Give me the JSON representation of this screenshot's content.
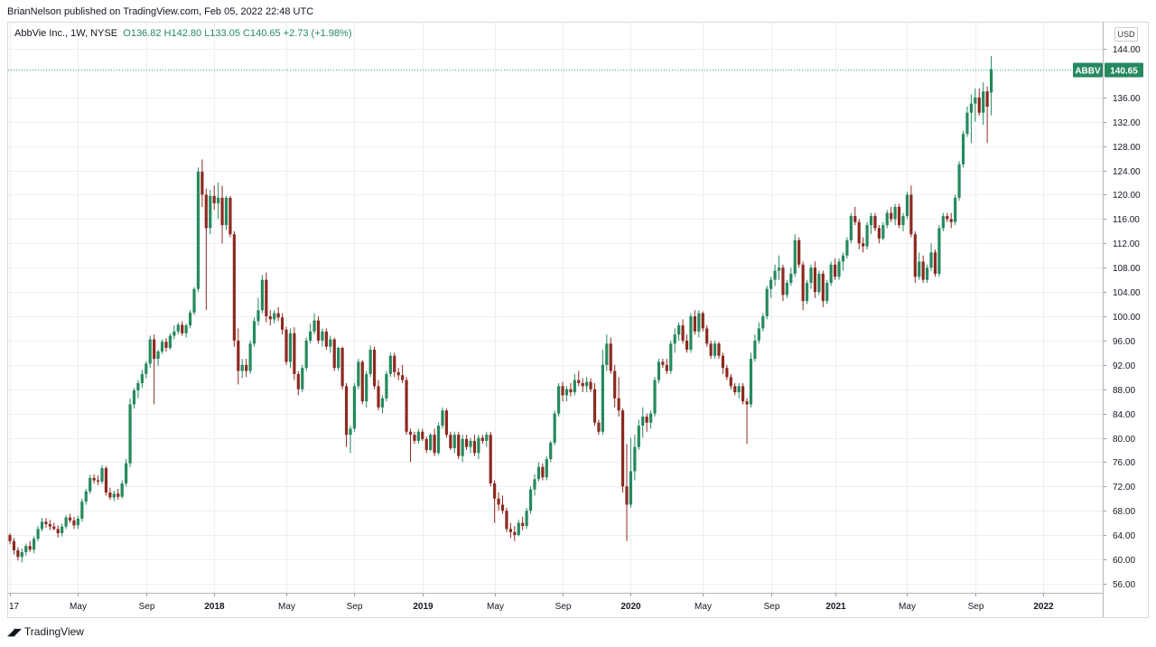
{
  "header": {
    "published_by": "BrianNelson published on TradingView.com, Feb 05, 2022 22:48 UTC"
  },
  "legend": {
    "symbol": "AbbVie Inc., 1W, NYSE",
    "open": "O136.82",
    "high": "H142.80",
    "low": "L133.05",
    "close": "C140.65",
    "change": "+2.73 (+1.98%)"
  },
  "currency": "USD",
  "price_tag": {
    "ticker": "ABBV",
    "value": "140.65"
  },
  "footer": {
    "brand": "TradingView"
  },
  "colors": {
    "up": "#26895f",
    "down": "#8c2a20",
    "grid": "#eceff2",
    "last_line": "#26a69a"
  },
  "chart_data": {
    "type": "candlestick",
    "title": "",
    "xlabel": "",
    "ylabel": "",
    "ylim": [
      54.5,
      145.5
    ],
    "grid": true,
    "y_ticks": [
      56,
      60,
      64,
      68,
      72,
      76,
      80,
      84,
      88,
      92,
      96,
      100,
      104,
      108,
      112,
      116,
      120,
      124,
      128,
      132,
      136,
      144
    ],
    "y_tick_labels": [
      "56.00",
      "60.00",
      "64.00",
      "68.00",
      "72.00",
      "76.00",
      "80.00",
      "84.00",
      "88.00",
      "92.00",
      "96.00",
      "100.00",
      "104.00",
      "108.00",
      "112.00",
      "116.00",
      "120.00",
      "124.00",
      "128.00",
      "132.00",
      "136.00",
      "144.00"
    ],
    "x_tick_labels": [
      "17",
      "May",
      "Sep",
      "2018",
      "May",
      "Sep",
      "2019",
      "May",
      "Sep",
      "2020",
      "May",
      "Sep",
      "2021",
      "May",
      "Sep",
      "2022"
    ],
    "x_tick_index": [
      0,
      17,
      34,
      51,
      69,
      86,
      103,
      121,
      138,
      155,
      173,
      190,
      206,
      224,
      241,
      258
    ],
    "last_price": 140.65,
    "candles": [
      [
        64.0,
        64.3,
        62.5,
        63.0
      ],
      [
        63.0,
        63.5,
        60.8,
        61.5
      ],
      [
        61.5,
        62.0,
        59.8,
        60.4
      ],
      [
        60.4,
        61.8,
        59.5,
        61.2
      ],
      [
        61.2,
        62.6,
        60.6,
        62.2
      ],
      [
        62.2,
        63.0,
        61.2,
        61.6
      ],
      [
        61.6,
        63.8,
        61.0,
        63.4
      ],
      [
        63.4,
        65.5,
        63.0,
        65.0
      ],
      [
        65.0,
        66.8,
        64.6,
        66.2
      ],
      [
        66.2,
        66.8,
        65.2,
        65.8
      ],
      [
        65.8,
        66.5,
        64.8,
        65.4
      ],
      [
        65.4,
        66.0,
        64.8,
        65.0
      ],
      [
        65.0,
        65.6,
        63.6,
        64.3
      ],
      [
        64.3,
        65.9,
        63.8,
        65.4
      ],
      [
        65.4,
        67.3,
        65.0,
        66.9
      ],
      [
        66.9,
        67.5,
        66.0,
        66.4
      ],
      [
        66.4,
        67.0,
        65.0,
        65.6
      ],
      [
        65.6,
        67.2,
        65.0,
        66.7
      ],
      [
        66.7,
        70.0,
        66.2,
        69.5
      ],
      [
        69.5,
        71.6,
        69.0,
        71.2
      ],
      [
        71.2,
        73.9,
        70.8,
        73.4
      ],
      [
        73.4,
        74.0,
        72.5,
        73.0
      ],
      [
        73.0,
        73.8,
        72.2,
        72.8
      ],
      [
        72.8,
        75.5,
        72.4,
        75.0
      ],
      [
        75.0,
        75.3,
        70.5,
        71.0
      ],
      [
        71.0,
        71.8,
        69.8,
        70.2
      ],
      [
        70.2,
        71.3,
        69.6,
        70.8
      ],
      [
        70.8,
        71.6,
        69.8,
        70.3
      ],
      [
        70.3,
        73.0,
        70.0,
        72.5
      ],
      [
        72.5,
        76.5,
        72.0,
        75.8
      ],
      [
        75.8,
        86.5,
        75.2,
        85.5
      ],
      [
        85.5,
        88.2,
        84.8,
        87.8
      ],
      [
        87.8,
        89.5,
        86.5,
        89.0
      ],
      [
        89.0,
        91.2,
        88.2,
        90.5
      ],
      [
        90.5,
        92.6,
        89.8,
        92.2
      ],
      [
        92.2,
        96.8,
        91.5,
        96.2
      ],
      [
        96.2,
        97.0,
        85.5,
        93.0
      ],
      [
        93.0,
        94.5,
        91.8,
        94.2
      ],
      [
        94.2,
        96.2,
        93.8,
        95.8
      ],
      [
        95.8,
        96.4,
        94.2,
        94.8
      ],
      [
        94.8,
        97.2,
        94.5,
        96.8
      ],
      [
        96.8,
        98.5,
        96.2,
        97.5
      ],
      [
        97.5,
        99.0,
        97.0,
        98.6
      ],
      [
        98.6,
        99.2,
        96.8,
        97.2
      ],
      [
        97.2,
        98.8,
        96.5,
        98.5
      ],
      [
        98.5,
        101.0,
        98.0,
        100.6
      ],
      [
        100.6,
        104.8,
        100.2,
        104.5
      ],
      [
        104.5,
        124.5,
        104.0,
        123.8
      ],
      [
        123.8,
        125.8,
        118.0,
        120.0
      ],
      [
        120.0,
        121.0,
        101.0,
        114.5
      ],
      [
        114.5,
        120.8,
        113.5,
        119.8
      ],
      [
        119.8,
        121.5,
        117.5,
        118.6
      ],
      [
        118.6,
        122.0,
        116.0,
        119.5
      ],
      [
        119.5,
        121.5,
        112.0,
        115.0
      ],
      [
        115.0,
        119.8,
        114.2,
        119.5
      ],
      [
        119.5,
        119.8,
        113.0,
        113.5
      ],
      [
        113.5,
        114.0,
        95.0,
        96.0
      ],
      [
        96.0,
        98.0,
        88.8,
        91.0
      ],
      [
        91.0,
        93.0,
        89.8,
        92.0
      ],
      [
        92.0,
        93.0,
        90.0,
        91.0
      ],
      [
        91.0,
        96.0,
        90.5,
        95.5
      ],
      [
        95.5,
        99.8,
        95.0,
        99.2
      ],
      [
        99.2,
        103.0,
        98.5,
        101.0
      ],
      [
        101.0,
        106.8,
        100.5,
        106.0
      ],
      [
        106.0,
        107.2,
        99.0,
        100.0
      ],
      [
        100.0,
        101.0,
        98.5,
        99.5
      ],
      [
        99.5,
        101.0,
        98.8,
        100.5
      ],
      [
        100.5,
        101.5,
        99.2,
        99.8
      ],
      [
        99.8,
        100.5,
        97.0,
        97.8
      ],
      [
        97.8,
        98.3,
        92.0,
        92.5
      ],
      [
        92.5,
        98.0,
        91.5,
        97.2
      ],
      [
        97.2,
        98.2,
        89.5,
        90.5
      ],
      [
        90.5,
        91.0,
        87.0,
        88.0
      ],
      [
        88.0,
        92.0,
        87.5,
        91.5
      ],
      [
        91.5,
        96.5,
        91.0,
        96.0
      ],
      [
        96.0,
        98.8,
        95.5,
        97.5
      ],
      [
        97.5,
        100.5,
        97.0,
        99.3
      ],
      [
        99.3,
        100.0,
        95.5,
        96.0
      ],
      [
        96.0,
        98.0,
        95.0,
        97.5
      ],
      [
        97.5,
        98.0,
        94.5,
        95.0
      ],
      [
        95.0,
        96.8,
        94.0,
        96.2
      ],
      [
        96.2,
        96.5,
        91.0,
        91.5
      ],
      [
        91.5,
        95.0,
        91.0,
        94.8
      ],
      [
        94.8,
        95.0,
        88.0,
        88.5
      ],
      [
        88.5,
        89.0,
        78.5,
        80.5
      ],
      [
        80.5,
        82.0,
        77.5,
        81.5
      ],
      [
        81.5,
        89.0,
        81.0,
        88.5
      ],
      [
        88.5,
        93.0,
        88.0,
        92.5
      ],
      [
        92.5,
        92.8,
        85.5,
        86.0
      ],
      [
        86.0,
        91.0,
        85.0,
        90.5
      ],
      [
        90.5,
        95.2,
        90.0,
        94.5
      ],
      [
        94.5,
        95.0,
        88.0,
        88.5
      ],
      [
        88.5,
        89.5,
        84.5,
        85.0
      ],
      [
        85.0,
        87.0,
        84.0,
        86.5
      ],
      [
        86.5,
        91.0,
        86.0,
        90.5
      ],
      [
        90.5,
        94.0,
        90.0,
        93.5
      ],
      [
        93.5,
        94.0,
        90.0,
        90.8
      ],
      [
        90.8,
        91.5,
        89.5,
        90.3
      ],
      [
        90.3,
        92.0,
        89.0,
        89.5
      ],
      [
        89.5,
        90.0,
        80.5,
        81.0
      ],
      [
        81.0,
        81.5,
        76.0,
        80.5
      ],
      [
        80.5,
        81.0,
        79.0,
        79.5
      ],
      [
        79.5,
        81.5,
        79.0,
        81.0
      ],
      [
        81.0,
        81.5,
        79.5,
        79.8
      ],
      [
        79.8,
        80.2,
        77.5,
        78.0
      ],
      [
        78.0,
        80.8,
        77.8,
        80.5
      ],
      [
        80.5,
        81.5,
        77.0,
        77.5
      ],
      [
        77.5,
        82.5,
        77.2,
        82.0
      ],
      [
        82.0,
        85.0,
        81.5,
        84.5
      ],
      [
        84.5,
        84.8,
        80.0,
        80.5
      ],
      [
        80.5,
        81.0,
        78.0,
        78.3
      ],
      [
        78.3,
        81.0,
        77.5,
        80.5
      ],
      [
        80.5,
        81.0,
        76.5,
        77.0
      ],
      [
        77.0,
        80.5,
        76.0,
        79.8
      ],
      [
        79.8,
        80.5,
        78.0,
        78.5
      ],
      [
        78.5,
        80.0,
        77.5,
        79.5
      ],
      [
        79.5,
        80.5,
        77.0,
        77.5
      ],
      [
        77.5,
        80.5,
        76.5,
        80.0
      ],
      [
        80.0,
        80.5,
        79.0,
        79.5
      ],
      [
        79.5,
        81.0,
        78.5,
        80.5
      ],
      [
        80.5,
        81.0,
        72.0,
        72.5
      ],
      [
        72.5,
        73.0,
        66.0,
        70.0
      ],
      [
        70.0,
        71.0,
        68.0,
        69.0
      ],
      [
        69.0,
        70.5,
        67.5,
        68.0
      ],
      [
        68.0,
        68.5,
        64.5,
        65.0
      ],
      [
        65.0,
        66.0,
        63.5,
        64.5
      ],
      [
        64.5,
        65.5,
        63.0,
        64.0
      ],
      [
        64.0,
        66.5,
        63.8,
        66.0
      ],
      [
        66.0,
        67.0,
        64.8,
        65.5
      ],
      [
        65.5,
        68.5,
        65.0,
        68.0
      ],
      [
        68.0,
        72.0,
        67.5,
        71.5
      ],
      [
        71.5,
        74.0,
        70.5,
        73.2
      ],
      [
        73.2,
        76.0,
        72.8,
        75.2
      ],
      [
        75.2,
        75.8,
        73.0,
        73.5
      ],
      [
        73.5,
        77.0,
        73.0,
        76.5
      ],
      [
        76.5,
        79.5,
        76.0,
        79.2
      ],
      [
        79.2,
        84.5,
        78.8,
        84.0
      ],
      [
        84.0,
        89.0,
        83.5,
        88.5
      ],
      [
        88.5,
        89.2,
        86.0,
        87.0
      ],
      [
        87.0,
        88.5,
        86.0,
        88.0
      ],
      [
        88.0,
        89.0,
        86.8,
        87.5
      ],
      [
        87.5,
        90.5,
        87.0,
        89.5
      ],
      [
        89.5,
        91.0,
        88.5,
        89.0
      ],
      [
        89.0,
        89.8,
        87.5,
        88.5
      ],
      [
        88.5,
        90.0,
        87.5,
        89.2
      ],
      [
        89.2,
        89.8,
        87.5,
        88.0
      ],
      [
        88.0,
        89.0,
        82.0,
        82.5
      ],
      [
        82.5,
        83.0,
        80.5,
        81.0
      ],
      [
        81.0,
        94.5,
        80.5,
        92.0
      ],
      [
        92.0,
        97.0,
        91.0,
        95.5
      ],
      [
        95.5,
        96.5,
        90.5,
        91.0
      ],
      [
        91.0,
        92.0,
        85.0,
        86.5
      ],
      [
        86.5,
        90.0,
        83.5,
        84.5
      ],
      [
        84.5,
        84.8,
        71.0,
        72.0
      ],
      [
        72.0,
        79.0,
        63.0,
        69.0
      ],
      [
        69.0,
        80.0,
        68.5,
        74.5
      ],
      [
        74.5,
        80.5,
        73.0,
        78.5
      ],
      [
        78.5,
        83.0,
        78.0,
        82.0
      ],
      [
        82.0,
        85.0,
        80.0,
        83.5
      ],
      [
        83.5,
        84.0,
        81.0,
        82.5
      ],
      [
        82.5,
        84.5,
        81.5,
        84.0
      ],
      [
        84.0,
        90.0,
        83.5,
        89.5
      ],
      [
        89.5,
        93.0,
        89.0,
        92.5
      ],
      [
        92.5,
        93.0,
        91.5,
        92.0
      ],
      [
        92.0,
        93.0,
        90.5,
        91.0
      ],
      [
        91.0,
        96.0,
        90.5,
        95.5
      ],
      [
        95.5,
        98.0,
        94.0,
        97.0
      ],
      [
        97.0,
        99.0,
        96.0,
        98.5
      ],
      [
        98.5,
        99.5,
        95.5,
        96.0
      ],
      [
        96.0,
        97.0,
        94.0,
        94.5
      ],
      [
        94.5,
        100.5,
        94.0,
        100.0
      ],
      [
        100.0,
        101.0,
        97.0,
        97.5
      ],
      [
        97.5,
        101.0,
        96.5,
        100.5
      ],
      [
        100.5,
        100.8,
        97.5,
        98.0
      ],
      [
        98.0,
        98.5,
        95.0,
        95.5
      ],
      [
        95.5,
        96.0,
        93.0,
        93.5
      ],
      [
        93.5,
        96.0,
        93.0,
        95.5
      ],
      [
        95.5,
        95.8,
        93.0,
        93.5
      ],
      [
        93.5,
        94.0,
        90.5,
        91.5
      ],
      [
        91.5,
        92.0,
        89.5,
        90.0
      ],
      [
        90.0,
        90.5,
        88.0,
        88.5
      ],
      [
        88.5,
        89.0,
        87.0,
        87.5
      ],
      [
        87.5,
        89.0,
        86.5,
        88.5
      ],
      [
        88.5,
        89.0,
        85.5,
        86.0
      ],
      [
        86.0,
        86.5,
        79.0,
        85.5
      ],
      [
        85.5,
        94.0,
        85.0,
        93.0
      ],
      [
        93.0,
        97.0,
        92.5,
        96.0
      ],
      [
        96.0,
        99.0,
        95.5,
        98.0
      ],
      [
        98.0,
        100.5,
        97.5,
        100.0
      ],
      [
        100.0,
        105.0,
        99.5,
        104.5
      ],
      [
        104.5,
        106.5,
        103.0,
        106.0
      ],
      [
        106.0,
        108.5,
        105.0,
        107.5
      ],
      [
        107.5,
        110.0,
        106.0,
        108.0
      ],
      [
        108.0,
        108.5,
        102.5,
        103.5
      ],
      [
        103.5,
        106.0,
        103.0,
        105.5
      ],
      [
        105.5,
        108.0,
        105.0,
        107.0
      ],
      [
        107.0,
        113.5,
        106.5,
        112.5
      ],
      [
        112.5,
        113.0,
        108.0,
        108.5
      ],
      [
        108.5,
        109.0,
        101.0,
        102.5
      ],
      [
        102.5,
        106.0,
        102.0,
        105.5
      ],
      [
        105.5,
        108.5,
        104.5,
        108.0
      ],
      [
        108.0,
        109.0,
        103.0,
        104.0
      ],
      [
        104.0,
        107.5,
        103.5,
        107.0
      ],
      [
        107.0,
        107.5,
        101.5,
        102.5
      ],
      [
        102.5,
        106.0,
        102.0,
        105.5
      ],
      [
        105.5,
        109.0,
        105.0,
        108.5
      ],
      [
        108.5,
        109.5,
        106.0,
        106.5
      ],
      [
        106.5,
        109.5,
        106.0,
        109.0
      ],
      [
        109.0,
        110.5,
        107.5,
        110.0
      ],
      [
        110.0,
        113.0,
        109.5,
        112.5
      ],
      [
        112.5,
        117.0,
        112.0,
        116.5
      ],
      [
        116.5,
        118.0,
        115.0,
        115.5
      ],
      [
        115.5,
        116.0,
        111.0,
        112.0
      ],
      [
        112.0,
        113.0,
        110.5,
        111.5
      ],
      [
        111.5,
        115.5,
        111.0,
        115.0
      ],
      [
        115.0,
        117.0,
        113.5,
        116.5
      ],
      [
        116.5,
        117.0,
        114.0,
        114.5
      ],
      [
        114.5,
        115.0,
        112.0,
        112.8
      ],
      [
        112.8,
        115.5,
        112.5,
        115.0
      ],
      [
        115.0,
        117.5,
        114.5,
        117.0
      ],
      [
        117.0,
        118.0,
        115.5,
        116.0
      ],
      [
        116.0,
        118.5,
        115.0,
        118.0
      ],
      [
        118.0,
        118.5,
        114.5,
        115.0
      ],
      [
        115.0,
        117.0,
        114.0,
        116.5
      ],
      [
        116.5,
        120.5,
        116.0,
        120.0
      ],
      [
        120.0,
        121.5,
        113.0,
        113.5
      ],
      [
        113.5,
        114.0,
        105.5,
        106.5
      ],
      [
        106.5,
        110.5,
        106.0,
        109.0
      ],
      [
        109.0,
        110.0,
        105.5,
        106.0
      ],
      [
        106.0,
        108.5,
        105.5,
        108.0
      ],
      [
        108.0,
        112.0,
        107.5,
        110.5
      ],
      [
        110.5,
        111.0,
        106.5,
        107.0
      ],
      [
        107.0,
        115.0,
        106.5,
        114.5
      ],
      [
        114.5,
        117.0,
        114.0,
        116.5
      ],
      [
        116.5,
        117.0,
        115.5,
        116.0
      ],
      [
        116.0,
        117.0,
        114.5,
        115.5
      ],
      [
        115.5,
        120.0,
        115.0,
        119.5
      ],
      [
        119.5,
        125.5,
        119.0,
        125.0
      ],
      [
        125.0,
        130.5,
        124.5,
        130.0
      ],
      [
        130.0,
        134.5,
        129.5,
        133.5
      ],
      [
        133.5,
        136.5,
        128.5,
        135.0
      ],
      [
        135.0,
        137.5,
        132.0,
        136.0
      ],
      [
        136.0,
        137.5,
        133.0,
        133.5
      ],
      [
        133.5,
        138.5,
        131.5,
        137.0
      ],
      [
        137.0,
        137.8,
        128.5,
        134.5
      ],
      [
        136.82,
        142.8,
        133.05,
        140.65
      ]
    ]
  }
}
